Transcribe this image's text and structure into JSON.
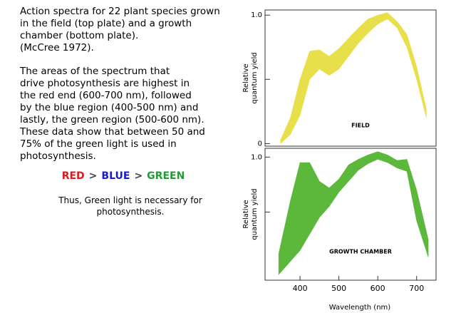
{
  "intro": [
    "Action spectra for 22 plant species grown",
    "in the field (top plate) and a growth",
    "chamber (bottom plate).",
    "(McCree 1972)."
  ],
  "body": [
    "The areas of the spectrum that",
    "drive photosynthesis are highest in",
    "the red end (600-700 nm), followed",
    "by the blue region (400-500 nm) and",
    "lastly, the green region (500-600 nm).",
    "These data show that between 50 and",
    "75% of the green light is used in",
    "photosynthesis."
  ],
  "ranking": [
    {
      "text": "RED",
      "color": "#e8141e"
    },
    {
      "text": ">",
      "color": "#444444"
    },
    {
      "text": "BLUE",
      "color": "#1a1ad0"
    },
    {
      "text": ">",
      "color": "#444444"
    },
    {
      "text": "GREEN",
      "color": "#1e9e2e"
    }
  ],
  "conclusion": [
    "Thus, Green light is necessary for",
    "photosynthesis."
  ],
  "chart_data": [
    {
      "type": "band",
      "annotation": "FIELD",
      "ylabel": [
        "Relative",
        "quantum yield"
      ],
      "color": "#e8e04a",
      "x": [
        350,
        375,
        400,
        425,
        450,
        475,
        500,
        525,
        550,
        575,
        600,
        625,
        650,
        675,
        700,
        725
      ],
      "lower": [
        0.0,
        0.07,
        0.22,
        0.5,
        0.58,
        0.53,
        0.58,
        0.68,
        0.78,
        0.86,
        0.93,
        0.97,
        0.9,
        0.75,
        0.5,
        0.2
      ],
      "upper": [
        0.03,
        0.2,
        0.5,
        0.72,
        0.73,
        0.68,
        0.74,
        0.82,
        0.9,
        0.97,
        1.0,
        1.02,
        0.95,
        0.85,
        0.6,
        0.27
      ],
      "xlim": [
        310,
        750
      ],
      "ylim": [
        -0.02,
        1.04
      ],
      "yticks": [
        0,
        {
          "value": 1,
          "label": "1.0"
        }
      ],
      "yticks_minor": [
        0.5
      ]
    },
    {
      "type": "band",
      "annotation": "GROWTH CHAMBER",
      "ylabel": [
        "Relative",
        "quantum yield"
      ],
      "color": "#5cb83a",
      "x": [
        345,
        375,
        400,
        425,
        450,
        475,
        500,
        525,
        550,
        575,
        600,
        625,
        650,
        675,
        700,
        730
      ],
      "lower": [
        -0.07,
        0.05,
        0.15,
        0.3,
        0.45,
        0.55,
        0.68,
        0.78,
        0.88,
        0.94,
        0.98,
        0.95,
        0.9,
        0.87,
        0.42,
        0.09
      ],
      "upper": [
        0.12,
        0.6,
        0.95,
        0.95,
        0.78,
        0.72,
        0.8,
        0.93,
        0.98,
        1.02,
        1.05,
        1.02,
        0.97,
        0.98,
        0.7,
        0.25
      ],
      "xlim": [
        310,
        750
      ],
      "ylim": [
        -0.12,
        1.08
      ],
      "yticks": [
        {
          "value": 1,
          "label": "1.0"
        }
      ],
      "yticks_minor": [
        0.5
      ],
      "xticks": [
        400,
        500,
        600,
        700
      ],
      "xlabel": "Wavelength (nm)"
    }
  ]
}
